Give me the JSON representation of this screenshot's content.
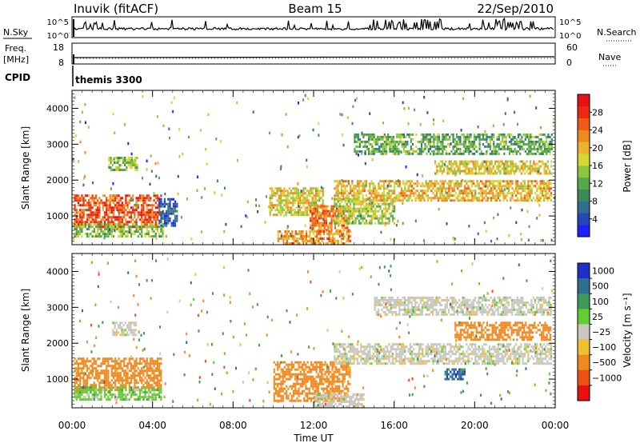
{
  "header": {
    "title": "Inuvik (fitACF)",
    "beam": "Beam 15",
    "date": "22/Sep/2010"
  },
  "top_panels": {
    "nsky_label": "N.Sky",
    "nsearch_label": "N.Search",
    "nsky_ticks": [
      "10^5",
      "10^0"
    ],
    "nsearch_ticks": [
      "10^5",
      "10^0"
    ],
    "freq_label_1": "Freq.",
    "freq_label_2": "[MHz]",
    "freq_ticks": [
      "18",
      "8"
    ],
    "nave_label": "Nave",
    "nave_ticks": [
      "60",
      "0"
    ],
    "cpid_label": "CPID",
    "cpid_text": "themis 3300"
  },
  "chart_data": [
    {
      "type": "heatmap",
      "title": "",
      "xlabel": "Time UT",
      "ylabel": "Slant Range [km]",
      "xlim": [
        0,
        24
      ],
      "ylim": [
        200,
        4500
      ],
      "x_ticks": [
        "00:00",
        "04:00",
        "08:00",
        "12:00",
        "16:00",
        "20:00",
        "00:00"
      ],
      "y_ticks": [
        "1000",
        "2000",
        "3000",
        "4000"
      ],
      "colorbar": {
        "label": "Power [dB]",
        "ticks": [
          "4",
          "8",
          "12",
          "16",
          "20",
          "24",
          "28"
        ],
        "range": [
          0,
          32
        ],
        "colors": [
          "#1f1fff",
          "#2448b8",
          "#2e6e8e",
          "#3c8a5c",
          "#56a84a",
          "#8cc83c",
          "#d6d832",
          "#f0b030",
          "#f08a20",
          "#f05a14",
          "#ec2a10",
          "#e81010"
        ]
      },
      "regions": [
        {
          "t": [
            0.1,
            4.4
          ],
          "r": [
            700,
            1600
          ],
          "value": 26
        },
        {
          "t": [
            0.1,
            4.5
          ],
          "r": [
            400,
            800
          ],
          "value": 14
        },
        {
          "t": [
            1.8,
            3.2
          ],
          "r": [
            2250,
            2650
          ],
          "value": 14
        },
        {
          "t": [
            4.3,
            5.2
          ],
          "r": [
            700,
            1500
          ],
          "value": 6
        },
        {
          "t": [
            9.8,
            12.5
          ],
          "r": [
            1000,
            1800
          ],
          "value": 18
        },
        {
          "t": [
            11.8,
            13.8
          ],
          "r": [
            600,
            1300
          ],
          "value": 24
        },
        {
          "t": [
            10.2,
            13.8
          ],
          "r": [
            250,
            600
          ],
          "value": 22
        },
        {
          "t": [
            13.0,
            23.8
          ],
          "r": [
            1400,
            2000
          ],
          "value": 20
        },
        {
          "t": [
            14.0,
            23.8
          ],
          "r": [
            2700,
            3300
          ],
          "value": 12
        },
        {
          "t": [
            18.0,
            23.8
          ],
          "r": [
            2150,
            2550
          ],
          "value": 18
        },
        {
          "t": [
            13.0,
            16.0
          ],
          "r": [
            800,
            1500
          ],
          "value": 16
        }
      ]
    },
    {
      "type": "heatmap",
      "title": "",
      "xlabel": "Time UT",
      "ylabel": "Slant Range [km]",
      "xlim": [
        0,
        24
      ],
      "ylim": [
        200,
        4500
      ],
      "x_ticks": [
        "00:00",
        "04:00",
        "08:00",
        "12:00",
        "16:00",
        "20:00",
        "00:00"
      ],
      "y_ticks": [
        "1000",
        "2000",
        "3000",
        "4000"
      ],
      "colorbar": {
        "label": "Velocity [m s⁻¹]",
        "ticks": [
          "1000",
          "500",
          "100",
          "25",
          "−25",
          "−100",
          "−500",
          "−1000"
        ],
        "values": [
          1000,
          500,
          100,
          25,
          -25,
          -100,
          -500,
          -1000
        ],
        "colors": [
          "#1f2fc8",
          "#2e6e8e",
          "#3c9a5a",
          "#66cc33",
          "#c8c8c0",
          "#f0c030",
          "#f08a20",
          "#f05014",
          "#e81010"
        ]
      },
      "regions": [
        {
          "t": [
            0.1,
            4.4
          ],
          "r": [
            700,
            1600
          ],
          "value": -250
        },
        {
          "t": [
            0.1,
            4.4
          ],
          "r": [
            400,
            800
          ],
          "value": 60
        },
        {
          "t": [
            2.0,
            3.2
          ],
          "r": [
            2250,
            2600
          ],
          "value": 0
        },
        {
          "t": [
            10.0,
            13.8
          ],
          "r": [
            400,
            1500
          ],
          "value": -200
        },
        {
          "t": [
            12.0,
            14.5
          ],
          "r": [
            250,
            600
          ],
          "value": 0
        },
        {
          "t": [
            13.0,
            23.8
          ],
          "r": [
            1400,
            2000
          ],
          "value": 0
        },
        {
          "t": [
            15.0,
            23.8
          ],
          "r": [
            2800,
            3300
          ],
          "value": 0
        },
        {
          "t": [
            19.0,
            23.8
          ],
          "r": [
            2100,
            2600
          ],
          "value": -300
        },
        {
          "t": [
            18.5,
            19.5
          ],
          "r": [
            1000,
            1300
          ],
          "value": 800
        }
      ]
    }
  ]
}
